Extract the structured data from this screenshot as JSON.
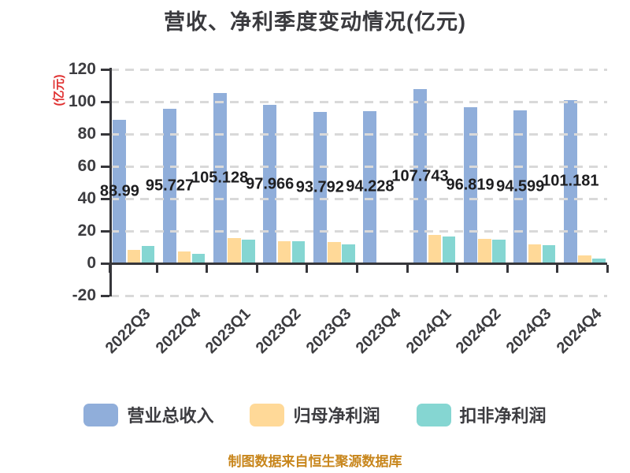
{
  "title": "营收、净利季度变动情况(亿元)",
  "y_axis_label": "(亿元)",
  "footer": "制图数据来自恒生聚源数据库",
  "colors": {
    "revenue_bar": "#90aeda",
    "net_profit_bar": "#ffd998",
    "nonrecurring_bar": "#85d6d2",
    "axis": "#36363a",
    "gridline": "#d9d9d9",
    "title_text": "#3a3a3e",
    "tick_text": "#3c3c40",
    "bar_label_text": "#1e1e20",
    "y_unit_label_text": "#e03030",
    "footer_text": "#c8861c"
  },
  "chart_data": {
    "type": "bar",
    "title": "营收、净利季度变动情况(亿元)",
    "xlabel": "",
    "ylabel": "(亿元)",
    "ylim": [
      -20,
      120
    ],
    "yticks": [
      120,
      100,
      80,
      60,
      40,
      20,
      0,
      -20
    ],
    "grid": "horizontal dashed, drawn over bars",
    "legend_position": "bottom",
    "categories": [
      "2022Q3",
      "2022Q4",
      "2023Q1",
      "2023Q2",
      "2023Q3",
      "2023Q4",
      "2024Q1",
      "2024Q2",
      "2024Q3",
      "2024Q4"
    ],
    "series": [
      {
        "name": "营业总收入",
        "values": [
          88.99,
          95.727,
          105.128,
          97.966,
          93.792,
          94.228,
          107.743,
          96.819,
          94.599,
          101.181
        ],
        "labels": [
          "88.99",
          "95.727",
          "105.128",
          "97.966",
          "93.792",
          "94.228",
          "107.743",
          "96.819",
          "94.599",
          "101.181"
        ],
        "labeled": true
      },
      {
        "name": "归母净利润",
        "values": [
          8.1,
          7.2,
          15.8,
          13.5,
          13.2,
          0.6,
          17.6,
          15.2,
          11.7,
          4.9
        ],
        "labeled": false
      },
      {
        "name": "扣非净利润",
        "values": [
          10.9,
          5.7,
          14.5,
          13.9,
          11.7,
          0.5,
          16.8,
          14.6,
          11.4,
          2.9
        ],
        "labeled": false
      }
    ]
  },
  "legend": {
    "items": [
      {
        "label": "营业总收入",
        "color": "#90aeda"
      },
      {
        "label": "归母净利润",
        "color": "#ffd998"
      },
      {
        "label": "扣非净利润",
        "color": "#85d6d2"
      }
    ]
  }
}
